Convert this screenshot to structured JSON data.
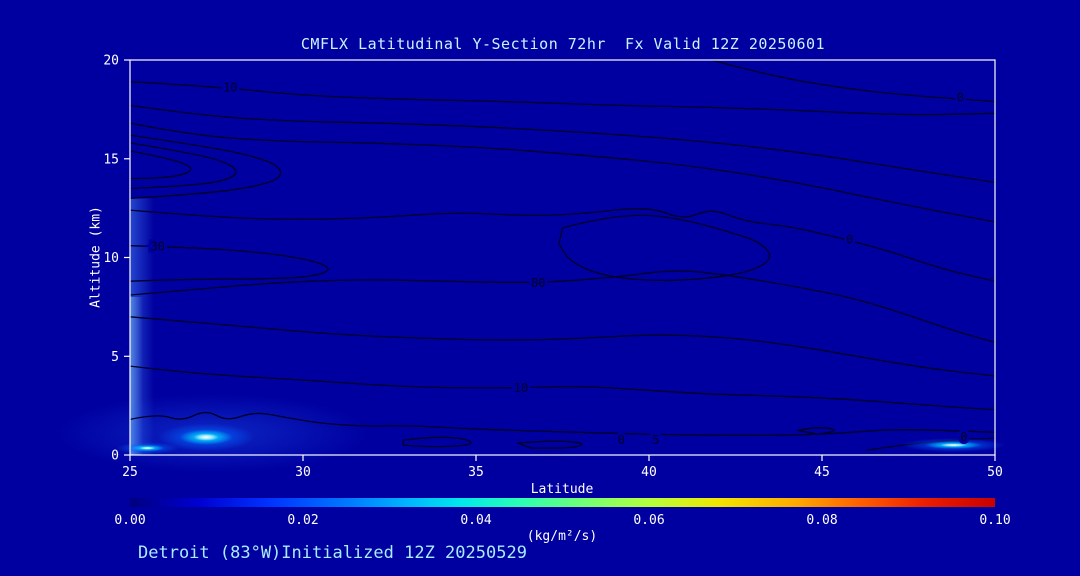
{
  "title": "CMFLX Latitudinal Y-Section 72hr  Fx Valid 12Z 20250601",
  "footer": "Detroit (83°W)Initialized 12Z 20250529",
  "colors": {
    "background": "#0000A0",
    "frame": "#FFFFFF",
    "contour": "#000028",
    "tick_text": "#FFFFFF",
    "title_text": "#C8F4FF",
    "footer_text": "#A8ECFF"
  },
  "chart_data": {
    "type": "contour",
    "title": "CMFLX Latitudinal Y-Section 72hr  Fx Valid 12Z 20250601",
    "xlabel": "Latitude",
    "ylabel": "Altitude (km)",
    "xlim": [
      25,
      50
    ],
    "ylim": [
      0,
      20
    ],
    "xticks": [
      25,
      30,
      35,
      40,
      45,
      50
    ],
    "yticks": [
      0,
      5,
      10,
      15,
      20
    ],
    "grid": false,
    "colorbar": {
      "min": 0.0,
      "max": 0.1,
      "ticks": [
        "0.00",
        "0.02",
        "0.04",
        "0.06",
        "0.08",
        "0.10"
      ],
      "units": "(kg/m²/s)",
      "stops": [
        [
          "#00007E",
          0
        ],
        [
          "#0000D2",
          0.08
        ],
        [
          "#0032FF",
          0.16
        ],
        [
          "#0078FF",
          0.25
        ],
        [
          "#00B4FF",
          0.32
        ],
        [
          "#00E6EB",
          0.38
        ],
        [
          "#2AFFB4",
          0.45
        ],
        [
          "#6EFF78",
          0.52
        ],
        [
          "#B4FF3C",
          0.6
        ],
        [
          "#F0E600",
          0.68
        ],
        [
          "#FFAA00",
          0.77
        ],
        [
          "#FF5A00",
          0.85
        ],
        [
          "#EB1E00",
          0.92
        ],
        [
          "#C80000",
          1
        ]
      ]
    },
    "contours": [
      {
        "level": "10",
        "closed": false,
        "points": [
          [
            25,
            18.9
          ],
          [
            27.5,
            18.65
          ],
          [
            30,
            18.2
          ],
          [
            33,
            18.0
          ],
          [
            36,
            17.9
          ],
          [
            39,
            17.7
          ],
          [
            42,
            17.6
          ],
          [
            45,
            17.4
          ],
          [
            47.5,
            17.2
          ],
          [
            50,
            17.3
          ]
        ]
      },
      {
        "level": "0",
        "closed": false,
        "points": [
          [
            41.8,
            20
          ],
          [
            43.5,
            19.2
          ],
          [
            45.5,
            18.6
          ],
          [
            47.5,
            18.2
          ],
          [
            50,
            17.9
          ]
        ]
      },
      {
        "level": "",
        "closed": false,
        "points": [
          [
            25,
            17.7
          ],
          [
            27,
            17.2
          ],
          [
            29.5,
            16.9
          ],
          [
            32.5,
            16.8
          ],
          [
            35.5,
            16.6
          ],
          [
            38.5,
            16.3
          ],
          [
            41.5,
            15.9
          ],
          [
            44.5,
            15.3
          ],
          [
            47,
            14.6
          ],
          [
            50,
            13.8
          ]
        ]
      },
      {
        "level": "",
        "closed": false,
        "points": [
          [
            25,
            16.8
          ],
          [
            26.8,
            16.2
          ],
          [
            29,
            15.9
          ],
          [
            32,
            15.8
          ],
          [
            35,
            15.6
          ],
          [
            38,
            15.2
          ],
          [
            41,
            14.7
          ],
          [
            44,
            13.9
          ],
          [
            47,
            12.8
          ],
          [
            50,
            11.8
          ]
        ]
      },
      {
        "level": "",
        "closed": false,
        "points": [
          [
            25,
            16.2
          ],
          [
            26.5,
            15.8
          ],
          [
            28.2,
            15.3
          ],
          [
            29.3,
            14.7
          ],
          [
            29.4,
            14.0
          ],
          [
            28.4,
            13.5
          ],
          [
            26.8,
            13.2
          ],
          [
            25,
            13.0
          ]
        ]
      },
      {
        "level": "",
        "closed": false,
        "points": [
          [
            25,
            15.8
          ],
          [
            26.4,
            15.4
          ],
          [
            27.7,
            14.9
          ],
          [
            28.2,
            14.3
          ],
          [
            27.6,
            13.8
          ],
          [
            26.3,
            13.6
          ],
          [
            25,
            13.5
          ]
        ]
      },
      {
        "level": "",
        "closed": false,
        "points": [
          [
            25,
            15.4
          ],
          [
            26.2,
            15.0
          ],
          [
            26.9,
            14.5
          ],
          [
            26.4,
            14.1
          ],
          [
            25.4,
            14.0
          ],
          [
            25,
            14.0
          ]
        ]
      },
      {
        "level": "",
        "closed": false,
        "points": [
          [
            25,
            12.4
          ],
          [
            27,
            12.1
          ],
          [
            29.5,
            11.9
          ],
          [
            32,
            12.0
          ],
          [
            34.5,
            12.3
          ],
          [
            36.5,
            12.1
          ],
          [
            38,
            12.2
          ],
          [
            40,
            12.6
          ],
          [
            41,
            11.9
          ],
          [
            41.8,
            12.5
          ],
          [
            42.8,
            11.8
          ],
          [
            44,
            11.6
          ],
          [
            45.5,
            11.0
          ],
          [
            47,
            10.3
          ],
          [
            48.5,
            9.4
          ],
          [
            50,
            8.8
          ]
        ]
      },
      {
        "level": "",
        "closed": true,
        "points": [
          [
            37.5,
            11.5
          ],
          [
            38.6,
            12.0
          ],
          [
            40,
            12.2
          ],
          [
            41.3,
            11.8
          ],
          [
            42.3,
            11.3
          ],
          [
            43.2,
            10.8
          ],
          [
            43.6,
            10.0
          ],
          [
            43,
            9.3
          ],
          [
            41.6,
            8.9
          ],
          [
            40,
            8.8
          ],
          [
            38.6,
            9.1
          ],
          [
            37.7,
            9.8
          ],
          [
            37.4,
            10.7
          ]
        ]
      },
      {
        "level": "30",
        "closed": false,
        "points": [
          [
            25,
            10.6
          ],
          [
            26.8,
            10.5
          ],
          [
            28.6,
            10.3
          ],
          [
            30.2,
            9.9
          ],
          [
            30.9,
            9.4
          ],
          [
            30.2,
            9.0
          ],
          [
            28.6,
            8.9
          ],
          [
            26.8,
            8.9
          ],
          [
            25,
            8.8
          ]
        ]
      },
      {
        "level": "80",
        "closed": false,
        "points": [
          [
            25,
            8.1
          ],
          [
            27,
            8.4
          ],
          [
            29,
            8.7
          ],
          [
            31.5,
            8.9
          ],
          [
            34,
            8.8
          ],
          [
            36.8,
            8.7
          ],
          [
            39,
            9.0
          ],
          [
            40.8,
            9.4
          ],
          [
            42.3,
            9.1
          ],
          [
            44,
            8.6
          ],
          [
            45.8,
            8.0
          ],
          [
            47.3,
            7.2
          ],
          [
            48.8,
            6.3
          ],
          [
            50,
            5.7
          ]
        ]
      },
      {
        "level": "",
        "closed": false,
        "points": [
          [
            25,
            7.0
          ],
          [
            27,
            6.7
          ],
          [
            29,
            6.4
          ],
          [
            31,
            6.1
          ],
          [
            33.5,
            5.9
          ],
          [
            36,
            5.8
          ],
          [
            38,
            5.9
          ],
          [
            40,
            6.1
          ],
          [
            42,
            6.0
          ],
          [
            44,
            5.6
          ],
          [
            46,
            5.0
          ],
          [
            48,
            4.4
          ],
          [
            50,
            4.0
          ]
        ]
      },
      {
        "level": "10",
        "closed": false,
        "points": [
          [
            25,
            4.5
          ],
          [
            26.5,
            4.2
          ],
          [
            28,
            4.0
          ],
          [
            30,
            3.8
          ],
          [
            32,
            3.55
          ],
          [
            34,
            3.4
          ],
          [
            36.3,
            3.4
          ],
          [
            38,
            3.5
          ],
          [
            39.8,
            3.3
          ],
          [
            41.5,
            3.1
          ],
          [
            43.5,
            3.0
          ],
          [
            45.5,
            2.85
          ],
          [
            47.5,
            2.6
          ],
          [
            49,
            2.4
          ],
          [
            50,
            2.3
          ]
        ]
      },
      {
        "level": "",
        "closed": false,
        "points": [
          [
            25,
            1.8
          ],
          [
            25.8,
            2.1
          ],
          [
            26.5,
            1.7
          ],
          [
            27.2,
            2.3
          ],
          [
            27.8,
            1.7
          ],
          [
            28.6,
            2.2
          ],
          [
            29.5,
            1.9
          ],
          [
            30.5,
            1.6
          ],
          [
            31.8,
            1.45
          ],
          [
            33,
            1.5
          ],
          [
            34.5,
            1.35
          ],
          [
            36,
            1.25
          ],
          [
            38,
            1.15
          ],
          [
            40,
            1.05
          ],
          [
            42,
            1.0
          ],
          [
            44,
            1.0
          ],
          [
            45.5,
            1.1
          ],
          [
            47,
            1.3
          ],
          [
            48.5,
            1.25
          ],
          [
            50,
            1.15
          ]
        ]
      },
      {
        "level": "",
        "closed": true,
        "points": [
          [
            32.9,
            0.75
          ],
          [
            33.8,
            0.95
          ],
          [
            34.8,
            0.8
          ],
          [
            34.9,
            0.5
          ],
          [
            33.8,
            0.4
          ],
          [
            32.9,
            0.5
          ]
        ]
      },
      {
        "level": "",
        "closed": true,
        "points": [
          [
            36.2,
            0.6
          ],
          [
            37.2,
            0.75
          ],
          [
            38.2,
            0.6
          ],
          [
            37.8,
            0.35
          ],
          [
            36.6,
            0.35
          ]
        ]
      },
      {
        "level": "",
        "closed": true,
        "points": [
          [
            44.3,
            1.25
          ],
          [
            44.9,
            1.45
          ],
          [
            45.5,
            1.25
          ],
          [
            44.9,
            1.05
          ]
        ]
      },
      {
        "level": "0",
        "closed": false,
        "points": [
          [
            46.3,
            0.25
          ],
          [
            47.3,
            0.5
          ],
          [
            48.4,
            0.7
          ],
          [
            49.4,
            0.82
          ],
          [
            50,
            0.85
          ]
        ]
      }
    ],
    "contour_labels": [
      {
        "text": "10",
        "lat": 27.9,
        "alt": 18.6
      },
      {
        "text": "0",
        "lat": 49.0,
        "alt": 18.1
      },
      {
        "text": "30",
        "lat": 25.8,
        "alt": 10.55
      },
      {
        "text": "80",
        "lat": 36.8,
        "alt": 8.7
      },
      {
        "text": "0",
        "lat": 45.8,
        "alt": 10.9
      },
      {
        "text": "10",
        "lat": 36.3,
        "alt": 3.4
      },
      {
        "text": "0",
        "lat": 39.2,
        "alt": 0.75
      },
      {
        "text": "5",
        "lat": 40.2,
        "alt": 0.75
      },
      {
        "text": "0",
        "lat": 49.1,
        "alt": 0.9
      }
    ],
    "shaded_maxima": [
      {
        "lat": 27.2,
        "alt": 0.9,
        "rx_lat": 1.4,
        "ry_alt": 0.7,
        "note": "bright near-surface flux maximum ~0.10"
      },
      {
        "lat": 48.8,
        "alt": 0.5,
        "rx_lat": 1.5,
        "ry_alt": 0.35,
        "note": "near-surface flux streak"
      },
      {
        "lat": 25.5,
        "alt": 0.35,
        "rx_lat": 0.9,
        "ry_alt": 0.3,
        "note": "corner flux patch"
      }
    ],
    "left_column_shading": {
      "lat_from": 25,
      "lat_to": 25.7,
      "alt_to": 13
    }
  }
}
